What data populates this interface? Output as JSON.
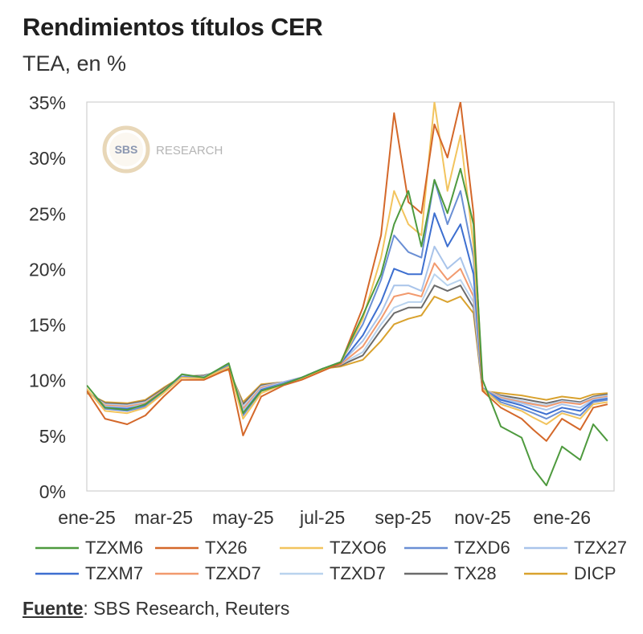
{
  "header": {
    "title": "Rendimientos títulos CER",
    "subtitle": "TEA, en %"
  },
  "watermark": {
    "logo_text": "SBS",
    "text": "RESEARCH"
  },
  "source": {
    "label": "Fuente",
    "text": ": SBS Research, Reuters"
  },
  "chart_data": {
    "type": "line",
    "ylim": [
      0,
      35
    ],
    "yticks": [
      0,
      5,
      10,
      15,
      20,
      25,
      30,
      35
    ],
    "ytick_labels": [
      "0%",
      "5%",
      "10%",
      "15%",
      "20%",
      "25%",
      "30%",
      "35%"
    ],
    "xlim": [
      "2025-01-01",
      "2026-02-10"
    ],
    "xticks": [
      "2025-01-01",
      "2025-03-01",
      "2025-05-01",
      "2025-07-01",
      "2025-09-01",
      "2025-11-01",
      "2026-01-01"
    ],
    "xtick_labels": [
      "ene-25",
      "mar-25",
      "may-25",
      "jul-25",
      "sep-25",
      "nov-25",
      "ene-26"
    ],
    "grid": false,
    "legend_position": "bottom",
    "series": [
      {
        "name": "TZXM6",
        "color": "#4e9a3e",
        "x": [
          "2025-01-01",
          "2025-01-15",
          "2025-02-01",
          "2025-02-15",
          "2025-03-01",
          "2025-03-15",
          "2025-04-01",
          "2025-04-20",
          "2025-05-01",
          "2025-05-15",
          "2025-06-01",
          "2025-06-15",
          "2025-07-01",
          "2025-07-15",
          "2025-08-01",
          "2025-08-15",
          "2025-08-25",
          "2025-09-05",
          "2025-09-15",
          "2025-09-25",
          "2025-10-05",
          "2025-10-15",
          "2025-10-25",
          "2025-11-01",
          "2025-11-15",
          "2025-12-01",
          "2025-12-10",
          "2025-12-20",
          "2026-01-01",
          "2026-01-15",
          "2026-01-25",
          "2026-02-05"
        ],
        "y": [
          9.5,
          7.5,
          7.3,
          7.8,
          9.0,
          10.5,
          10.2,
          11.5,
          7.0,
          9.0,
          9.6,
          10.2,
          11.0,
          11.6,
          15.8,
          19.5,
          24.0,
          27.0,
          22.0,
          28.0,
          25.0,
          29.0,
          24.0,
          10.0,
          5.8,
          4.8,
          2.0,
          0.5,
          4.0,
          2.8,
          6.0,
          4.5
        ]
      },
      {
        "name": "TX26",
        "color": "#d4682a",
        "x": [
          "2025-01-01",
          "2025-01-15",
          "2025-02-01",
          "2025-02-15",
          "2025-03-01",
          "2025-03-15",
          "2025-04-01",
          "2025-04-20",
          "2025-05-01",
          "2025-05-15",
          "2025-06-01",
          "2025-06-15",
          "2025-07-01",
          "2025-07-15",
          "2025-08-01",
          "2025-08-15",
          "2025-08-25",
          "2025-09-05",
          "2025-09-15",
          "2025-09-25",
          "2025-10-05",
          "2025-10-15",
          "2025-10-25",
          "2025-11-01",
          "2025-11-15",
          "2025-12-01",
          "2025-12-10",
          "2025-12-20",
          "2026-01-01",
          "2026-01-15",
          "2026-01-25",
          "2026-02-05"
        ],
        "y": [
          9.0,
          6.5,
          6.0,
          6.8,
          8.5,
          10.0,
          10.0,
          11.0,
          5.0,
          8.5,
          9.5,
          10.0,
          10.8,
          11.5,
          16.5,
          23.0,
          34.0,
          26.0,
          25.0,
          33.0,
          30.0,
          35.0,
          25.0,
          9.0,
          7.5,
          6.5,
          5.5,
          4.5,
          6.5,
          5.5,
          7.5,
          7.8
        ]
      },
      {
        "name": "TZXO6",
        "color": "#f2c45e",
        "x": [
          "2025-01-01",
          "2025-01-15",
          "2025-02-01",
          "2025-02-15",
          "2025-03-01",
          "2025-03-15",
          "2025-04-01",
          "2025-04-20",
          "2025-05-01",
          "2025-05-15",
          "2025-06-01",
          "2025-06-15",
          "2025-07-01",
          "2025-07-15",
          "2025-08-01",
          "2025-08-15",
          "2025-08-25",
          "2025-09-05",
          "2025-09-15",
          "2025-09-25",
          "2025-10-05",
          "2025-10-15",
          "2025-10-25",
          "2025-11-01",
          "2025-11-15",
          "2025-12-01",
          "2025-12-10",
          "2025-12-20",
          "2026-01-01",
          "2026-01-15",
          "2026-01-25",
          "2026-02-05"
        ],
        "y": [
          9.2,
          7.2,
          7.0,
          7.5,
          8.8,
          10.2,
          10.1,
          11.2,
          6.5,
          8.8,
          9.6,
          10.1,
          10.9,
          11.5,
          15.5,
          21.0,
          27.0,
          24.0,
          23.0,
          35.0,
          27.0,
          32.0,
          22.0,
          9.2,
          7.8,
          7.2,
          6.6,
          6.0,
          7.0,
          6.5,
          7.8,
          8.0
        ]
      },
      {
        "name": "TZXD6",
        "color": "#6a8fd4",
        "x": [
          "2025-01-01",
          "2025-01-15",
          "2025-02-01",
          "2025-02-15",
          "2025-03-01",
          "2025-03-15",
          "2025-04-01",
          "2025-04-20",
          "2025-05-01",
          "2025-05-15",
          "2025-06-01",
          "2025-06-15",
          "2025-07-01",
          "2025-07-15",
          "2025-08-01",
          "2025-08-15",
          "2025-08-25",
          "2025-09-05",
          "2025-09-15",
          "2025-09-25",
          "2025-10-05",
          "2025-10-15",
          "2025-10-25",
          "2025-11-01",
          "2025-11-15",
          "2025-12-01",
          "2025-12-10",
          "2025-12-20",
          "2026-01-01",
          "2026-01-15",
          "2026-01-25",
          "2026-02-05"
        ],
        "y": [
          9.1,
          7.4,
          7.2,
          7.6,
          8.9,
          10.3,
          10.2,
          11.4,
          6.8,
          9.0,
          9.7,
          10.2,
          11.0,
          11.6,
          15.0,
          19.0,
          23.0,
          21.5,
          21.0,
          28.0,
          24.0,
          27.0,
          21.0,
          9.3,
          8.0,
          7.4,
          7.0,
          6.5,
          7.2,
          6.8,
          8.0,
          8.2
        ]
      },
      {
        "name": "TZX27",
        "color": "#a9c4ea",
        "x": [
          "2025-01-01",
          "2025-01-15",
          "2025-02-01",
          "2025-02-15",
          "2025-03-01",
          "2025-03-15",
          "2025-04-01",
          "2025-04-20",
          "2025-05-01",
          "2025-05-15",
          "2025-06-01",
          "2025-06-15",
          "2025-07-01",
          "2025-07-15",
          "2025-08-01",
          "2025-08-15",
          "2025-08-25",
          "2025-09-05",
          "2025-09-15",
          "2025-09-25",
          "2025-10-05",
          "2025-10-15",
          "2025-10-25",
          "2025-11-01",
          "2025-11-15",
          "2025-12-01",
          "2025-12-10",
          "2025-12-20",
          "2026-01-01",
          "2026-01-15",
          "2026-01-25",
          "2026-02-05"
        ],
        "y": [
          9.0,
          7.6,
          7.5,
          7.8,
          9.0,
          10.3,
          10.3,
          11.3,
          7.2,
          9.2,
          9.8,
          10.2,
          11.0,
          11.5,
          13.5,
          16.0,
          18.5,
          18.5,
          18.0,
          22.0,
          20.0,
          21.0,
          18.0,
          9.2,
          8.3,
          7.9,
          7.6,
          7.3,
          7.8,
          7.5,
          8.2,
          8.4
        ]
      },
      {
        "name": "TZXM7",
        "color": "#3d6fd0",
        "x": [
          "2025-01-01",
          "2025-01-15",
          "2025-02-01",
          "2025-02-15",
          "2025-03-01",
          "2025-03-15",
          "2025-04-01",
          "2025-04-20",
          "2025-05-01",
          "2025-05-15",
          "2025-06-01",
          "2025-06-15",
          "2025-07-01",
          "2025-07-15",
          "2025-08-01",
          "2025-08-15",
          "2025-08-25",
          "2025-09-05",
          "2025-09-15",
          "2025-09-25",
          "2025-10-05",
          "2025-10-15",
          "2025-10-25",
          "2025-11-01",
          "2025-11-15",
          "2025-12-01",
          "2025-12-10",
          "2025-12-20",
          "2026-01-01",
          "2026-01-15",
          "2026-01-25",
          "2026-02-05"
        ],
        "y": [
          9.1,
          7.5,
          7.4,
          7.7,
          9.0,
          10.3,
          10.2,
          11.3,
          7.0,
          9.1,
          9.7,
          10.2,
          11.0,
          11.5,
          14.0,
          17.0,
          20.0,
          19.5,
          19.5,
          25.0,
          22.0,
          24.0,
          19.5,
          9.2,
          8.2,
          7.7,
          7.3,
          6.9,
          7.5,
          7.2,
          8.1,
          8.3
        ]
      },
      {
        "name": "TZXD7",
        "color": "#f29a6e",
        "x": [
          "2025-01-01",
          "2025-01-15",
          "2025-02-01",
          "2025-02-15",
          "2025-03-01",
          "2025-03-15",
          "2025-04-01",
          "2025-04-20",
          "2025-05-01",
          "2025-05-15",
          "2025-06-01",
          "2025-06-15",
          "2025-07-01",
          "2025-07-15",
          "2025-08-01",
          "2025-08-15",
          "2025-08-25",
          "2025-09-05",
          "2025-09-15",
          "2025-09-25",
          "2025-10-05",
          "2025-10-15",
          "2025-10-25",
          "2025-11-01",
          "2025-11-15",
          "2025-12-01",
          "2025-12-10",
          "2025-12-20",
          "2026-01-01",
          "2026-01-15",
          "2026-01-25",
          "2026-02-05"
        ],
        "y": [
          9.0,
          7.7,
          7.6,
          7.9,
          9.1,
          10.3,
          10.3,
          11.2,
          7.4,
          9.3,
          9.8,
          10.2,
          11.0,
          11.4,
          13.0,
          15.5,
          17.5,
          17.8,
          17.5,
          20.5,
          19.0,
          20.0,
          17.5,
          9.2,
          8.4,
          8.0,
          7.8,
          7.6,
          8.0,
          7.8,
          8.3,
          8.5
        ]
      },
      {
        "name": "TZXD7",
        "color": "#b9d3ee",
        "x": [
          "2025-01-01",
          "2025-01-15",
          "2025-02-01",
          "2025-02-15",
          "2025-03-01",
          "2025-03-15",
          "2025-04-01",
          "2025-04-20",
          "2025-05-01",
          "2025-05-15",
          "2025-06-01",
          "2025-06-15",
          "2025-07-01",
          "2025-07-15",
          "2025-08-01",
          "2025-08-15",
          "2025-08-25",
          "2025-09-05",
          "2025-09-15",
          "2025-09-25",
          "2025-10-05",
          "2025-10-15",
          "2025-10-25",
          "2025-11-01",
          "2025-11-15",
          "2025-12-01",
          "2025-12-10",
          "2025-12-20",
          "2026-01-01",
          "2026-01-15",
          "2026-01-25",
          "2026-02-05"
        ],
        "y": [
          8.9,
          7.8,
          7.7,
          8.0,
          9.1,
          10.3,
          10.3,
          11.1,
          7.6,
          9.4,
          9.8,
          10.2,
          11.0,
          11.4,
          12.5,
          15.0,
          16.5,
          17.0,
          17.0,
          19.5,
          18.5,
          19.0,
          17.0,
          9.2,
          8.5,
          8.1,
          7.9,
          7.7,
          8.1,
          7.9,
          8.4,
          8.6
        ]
      },
      {
        "name": "TX28",
        "color": "#6b6b6b",
        "x": [
          "2025-01-01",
          "2025-01-15",
          "2025-02-01",
          "2025-02-15",
          "2025-03-01",
          "2025-03-15",
          "2025-04-01",
          "2025-04-20",
          "2025-05-01",
          "2025-05-15",
          "2025-06-01",
          "2025-06-15",
          "2025-07-01",
          "2025-07-15",
          "2025-08-01",
          "2025-08-15",
          "2025-08-25",
          "2025-09-05",
          "2025-09-15",
          "2025-09-25",
          "2025-10-05",
          "2025-10-15",
          "2025-10-25",
          "2025-11-01",
          "2025-11-15",
          "2025-12-01",
          "2025-12-10",
          "2025-12-20",
          "2026-01-01",
          "2026-01-15",
          "2026-01-25",
          "2026-02-05"
        ],
        "y": [
          8.9,
          7.9,
          7.8,
          8.1,
          9.2,
          10.3,
          10.4,
          11.0,
          7.8,
          9.5,
          9.8,
          10.2,
          11.0,
          11.3,
          12.2,
          14.5,
          16.0,
          16.5,
          16.5,
          18.5,
          18.0,
          18.5,
          16.5,
          9.1,
          8.6,
          8.3,
          8.1,
          7.9,
          8.2,
          8.0,
          8.5,
          8.7
        ]
      },
      {
        "name": "DICP",
        "color": "#d9a22e",
        "x": [
          "2025-01-01",
          "2025-01-15",
          "2025-02-01",
          "2025-02-15",
          "2025-03-01",
          "2025-03-15",
          "2025-04-01",
          "2025-04-20",
          "2025-05-01",
          "2025-05-15",
          "2025-06-01",
          "2025-06-15",
          "2025-07-01",
          "2025-07-15",
          "2025-08-01",
          "2025-08-15",
          "2025-08-25",
          "2025-09-05",
          "2025-09-15",
          "2025-09-25",
          "2025-10-05",
          "2025-10-15",
          "2025-10-25",
          "2025-11-01",
          "2025-11-15",
          "2025-12-01",
          "2025-12-10",
          "2025-12-20",
          "2026-01-01",
          "2026-01-15",
          "2026-01-25",
          "2026-02-05"
        ],
        "y": [
          8.8,
          8.0,
          7.9,
          8.2,
          9.3,
          10.3,
          10.4,
          10.9,
          8.0,
          9.6,
          9.8,
          10.2,
          11.0,
          11.2,
          11.8,
          13.5,
          15.0,
          15.5,
          15.8,
          17.5,
          17.0,
          17.5,
          16.0,
          9.0,
          8.8,
          8.6,
          8.4,
          8.2,
          8.5,
          8.3,
          8.7,
          8.8
        ]
      }
    ]
  }
}
